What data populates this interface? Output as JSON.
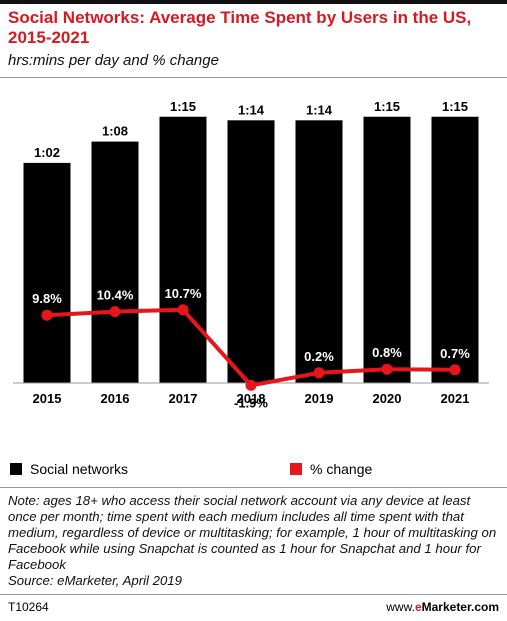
{
  "header": {
    "title": "Social Networks: Average Time Spent by Users in the US, 2015-2021",
    "subtitle": "hrs:mins per day and % change"
  },
  "chart_data": {
    "type": "bar",
    "categories": [
      "2015",
      "2016",
      "2017",
      "2018",
      "2019",
      "2020",
      "2021"
    ],
    "series": [
      {
        "name": "Social networks",
        "type": "bar",
        "values": [
          62,
          68,
          75,
          74,
          74,
          75,
          75
        ],
        "value_labels": [
          "1:02",
          "1:08",
          "1:15",
          "1:14",
          "1:14",
          "1:15",
          "1:15"
        ],
        "color": "#000000"
      },
      {
        "name": "% change",
        "type": "line",
        "values": [
          9.8,
          10.4,
          10.7,
          -1.9,
          0.2,
          0.8,
          0.7
        ],
        "value_labels": [
          "9.8%",
          "10.4%",
          "10.7%",
          "-1.9%",
          "0.2%",
          "0.8%",
          "0.7%"
        ],
        "color": "#e8151b"
      }
    ]
  },
  "legend": {
    "bars_label": "Social networks",
    "line_label": "% change"
  },
  "note": "Note: ages 18+ who access their social network account via any device at least once per month; time spent with each medium includes all time spent with that medium, regardless of device or multitasking; for example, 1 hour of multitasking on Facebook while using Snapchat is counted as 1 hour for Snapchat and 1 hour for Facebook",
  "source": "Source: eMarketer, April 2019",
  "footer": {
    "chart_id": "T10264",
    "site_prefix": "www.",
    "site_brand": "e",
    "site_name": "Marketer.com"
  }
}
